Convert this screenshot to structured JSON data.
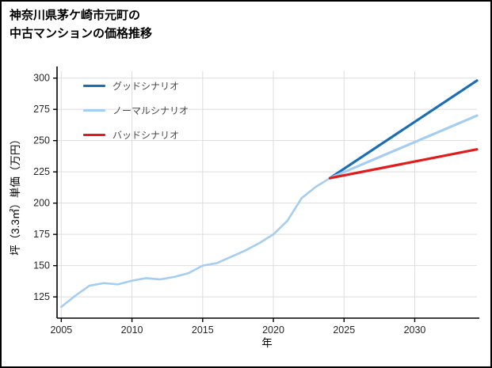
{
  "chart_data": {
    "type": "line",
    "title": "神奈川県茅ケ崎市元町の中古マンションの価格推移",
    "title_lines": [
      "神奈川県茅ケ崎市元町の",
      "中古マンションの価格推移"
    ],
    "xlabel": "年",
    "ylabel": "坪（3.3㎡）単価（万円）",
    "xlim": [
      2004.7,
      2034.4
    ],
    "ylim": [
      108,
      305.5
    ],
    "x_ticks": [
      2005,
      2010,
      2015,
      2020,
      2025,
      2030
    ],
    "y_ticks": [
      125,
      150,
      175,
      200,
      225,
      250,
      275,
      300
    ],
    "grid": true,
    "legend_position": "upper-left-inside",
    "colors": {
      "grid": "#dddddd",
      "axis": "#000000",
      "tick_label": "#262626",
      "legend_text": "#4a4a4a",
      "background": "#ffffff"
    },
    "series": [
      {
        "id": "history",
        "in_legend": false,
        "color": "#a5cdf0",
        "width": 2.6,
        "x": [
          2005,
          2006,
          2007,
          2008,
          2009,
          2010,
          2011,
          2012,
          2013,
          2014,
          2015,
          2016,
          2017,
          2018,
          2019,
          2020,
          2021,
          2022,
          2023,
          2024
        ],
        "values": [
          117,
          126,
          134,
          136,
          135,
          138,
          140,
          139,
          141,
          144,
          150,
          152,
          157,
          162,
          168,
          175,
          186,
          204,
          213,
          220
        ]
      },
      {
        "id": "good-scenario",
        "name": "グッドシナリオ",
        "in_legend": true,
        "color": "#1a6eb5",
        "width": 3.2,
        "x": [
          2024,
          2034.4
        ],
        "values": [
          220,
          298
        ]
      },
      {
        "id": "normal-scenario",
        "name": "ノーマルシナリオ",
        "in_legend": true,
        "color": "#a5cdf0",
        "width": 3.2,
        "x": [
          2024,
          2034.4
        ],
        "values": [
          220,
          270
        ]
      },
      {
        "id": "bad-scenario",
        "name": "バッドシナリオ",
        "in_legend": true,
        "color": "#e01d1d",
        "width": 3.2,
        "x": [
          2024,
          2034.4
        ],
        "values": [
          220,
          243
        ]
      }
    ]
  }
}
